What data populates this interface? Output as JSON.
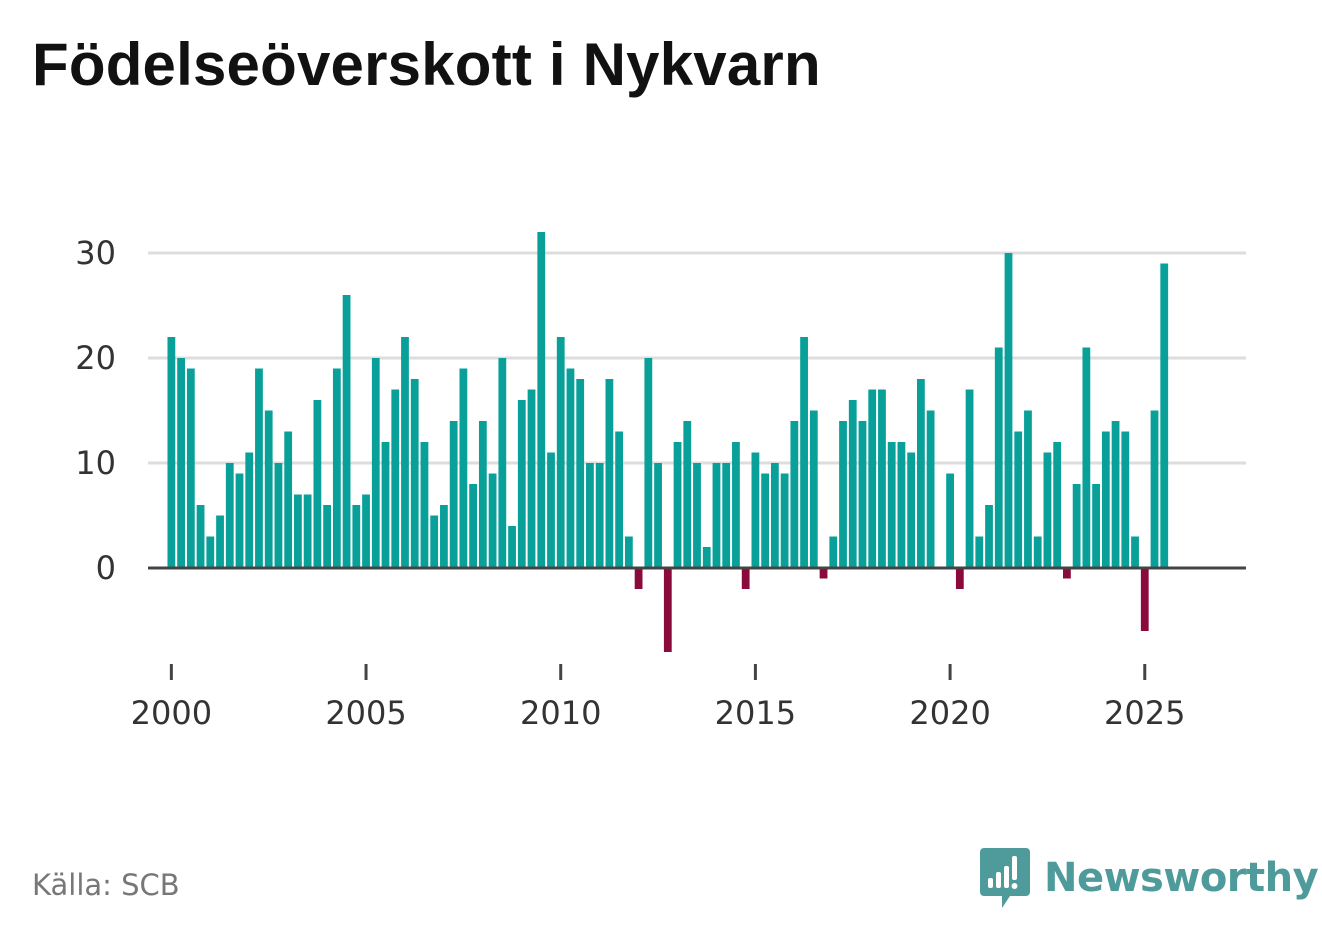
{
  "chart_data": {
    "type": "bar",
    "title": "Födelseöverskott i Nykvarn",
    "source": "Källa: SCB",
    "xlabel": "",
    "ylabel": "",
    "x_start": 2000.0,
    "x_step": 0.25,
    "xlim": [
      1999.4,
      2027.6
    ],
    "ylim": [
      -10,
      34
    ],
    "yticks": [
      0,
      10,
      20,
      30
    ],
    "xticks": [
      2000,
      2005,
      2010,
      2015,
      2020,
      2025
    ],
    "colors": {
      "positive": "#0aa09a",
      "negative": "#8a0a3c",
      "grid": "#dddddd",
      "zero": "#444444"
    },
    "values": [
      22,
      20,
      19,
      6,
      3,
      5,
      10,
      9,
      11,
      19,
      15,
      10,
      13,
      7,
      7,
      16,
      6,
      19,
      26,
      6,
      7,
      20,
      12,
      17,
      22,
      18,
      12,
      5,
      6,
      14,
      19,
      8,
      14,
      9,
      20,
      4,
      16,
      17,
      32,
      11,
      22,
      19,
      18,
      10,
      10,
      18,
      13,
      3,
      -2,
      20,
      10,
      -8,
      12,
      14,
      10,
      2,
      10,
      10,
      12,
      -2,
      11,
      9,
      10,
      9,
      14,
      22,
      15,
      -1,
      3,
      14,
      16,
      14,
      17,
      17,
      12,
      12,
      11,
      18,
      15,
      0,
      9,
      -2,
      17,
      3,
      6,
      21,
      30,
      13,
      15,
      3,
      11,
      12,
      -1,
      8,
      21,
      8,
      13,
      14,
      13,
      3,
      -6,
      15,
      29
    ]
  },
  "brand": {
    "name": "Newsworthy",
    "logo_icon": "newsworthy-logo-icon",
    "color": "#4f9a9a"
  }
}
